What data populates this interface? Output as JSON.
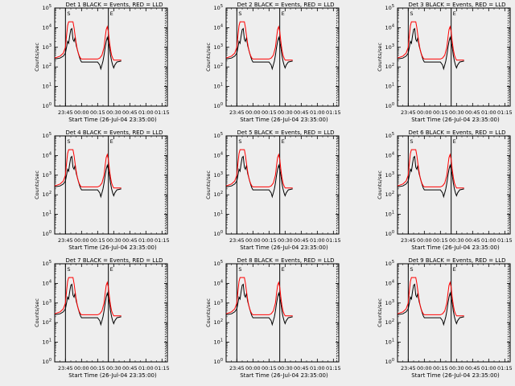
{
  "chart_data": [
    {
      "type": "line",
      "title": "Det 1  BLACK = Events, RED = LLD"
    },
    {
      "type": "line",
      "title": "Det 2  BLACK = Events, RED = LLD"
    },
    {
      "type": "line",
      "title": "Det 3  BLACK = Events, RED = LLD"
    },
    {
      "type": "line",
      "title": "Det 4  BLACK = Events, RED = LLD"
    },
    {
      "type": "line",
      "title": "Det 5  BLACK = Events, RED = LLD"
    },
    {
      "type": "line",
      "title": "Det 6  BLACK = Events, RED = LLD"
    },
    {
      "type": "line",
      "title": "Det 7  BLACK = Events, RED = LLD"
    },
    {
      "type": "line",
      "title": "Det 8  BLACK = Events, RED = LLD"
    },
    {
      "type": "line",
      "title": "Det 9  BLACK = Events, RED = LLD"
    }
  ],
  "common": {
    "ylabel": "Counts/sec",
    "xlabel": "Start Time (26-Jul-04 23:35:00)",
    "x_ticks": [
      "23:45",
      "00:00",
      "00:15",
      "00:30",
      "00:45",
      "01:00",
      "01:15"
    ],
    "y_tick_exponents": [
      0,
      1,
      2,
      3,
      4,
      5
    ],
    "x_range_min": [
      0,
      105
    ],
    "y_log_range": [
      0,
      5
    ],
    "vertical_markers_min": [
      10,
      50
    ],
    "marker_labels": [
      "S",
      "E"
    ],
    "grid": false,
    "series_colors": {
      "events": "#000000",
      "lld": "#ff0000"
    },
    "events_profile": [
      [
        0,
        2.4
      ],
      [
        5,
        2.45
      ],
      [
        8,
        2.55
      ],
      [
        10,
        2.7
      ],
      [
        11,
        3.0
      ],
      [
        12,
        3.3
      ],
      [
        13,
        3.2
      ],
      [
        14,
        3.6
      ],
      [
        15,
        3.9
      ],
      [
        16,
        3.95
      ],
      [
        17,
        3.4
      ],
      [
        18,
        3.3
      ],
      [
        19,
        3.5
      ],
      [
        20,
        3.1
      ],
      [
        21,
        2.9
      ],
      [
        22,
        2.7
      ],
      [
        23,
        2.5
      ],
      [
        24,
        2.35
      ],
      [
        25,
        2.25
      ],
      [
        30,
        2.25
      ],
      [
        35,
        2.25
      ],
      [
        40,
        2.25
      ],
      [
        42,
        2.1
      ],
      [
        43,
        1.9
      ],
      [
        44,
        2.1
      ],
      [
        45,
        2.3
      ],
      [
        46,
        2.6
      ],
      [
        47,
        3.0
      ],
      [
        48,
        3.3
      ],
      [
        49,
        3.5
      ],
      [
        50,
        3.3
      ],
      [
        51,
        3.0
      ],
      [
        52,
        2.6
      ],
      [
        53,
        2.3
      ],
      [
        54,
        2.1
      ],
      [
        55,
        1.95
      ],
      [
        56,
        2.1
      ],
      [
        58,
        2.25
      ],
      [
        62,
        2.3
      ]
    ],
    "lld_profile": [
      [
        0,
        2.45
      ],
      [
        5,
        2.55
      ],
      [
        8,
        2.7
      ],
      [
        10,
        3.0
      ],
      [
        11,
        3.6
      ],
      [
        12,
        4.1
      ],
      [
        13,
        4.3
      ],
      [
        14,
        4.3
      ],
      [
        15,
        4.3
      ],
      [
        16,
        4.3
      ],
      [
        17,
        4.3
      ],
      [
        18,
        4.0
      ],
      [
        19,
        3.6
      ],
      [
        20,
        3.2
      ],
      [
        21,
        2.9
      ],
      [
        22,
        2.7
      ],
      [
        23,
        2.55
      ],
      [
        24,
        2.45
      ],
      [
        25,
        2.4
      ],
      [
        30,
        2.4
      ],
      [
        35,
        2.4
      ],
      [
        40,
        2.4
      ],
      [
        42,
        2.45
      ],
      [
        44,
        2.6
      ],
      [
        46,
        3.0
      ],
      [
        47,
        3.5
      ],
      [
        48,
        3.9
      ],
      [
        49,
        4.05
      ],
      [
        50,
        3.8
      ],
      [
        51,
        3.3
      ],
      [
        52,
        2.9
      ],
      [
        53,
        2.6
      ],
      [
        54,
        2.45
      ],
      [
        55,
        2.35
      ],
      [
        58,
        2.35
      ],
      [
        62,
        2.35
      ]
    ]
  }
}
